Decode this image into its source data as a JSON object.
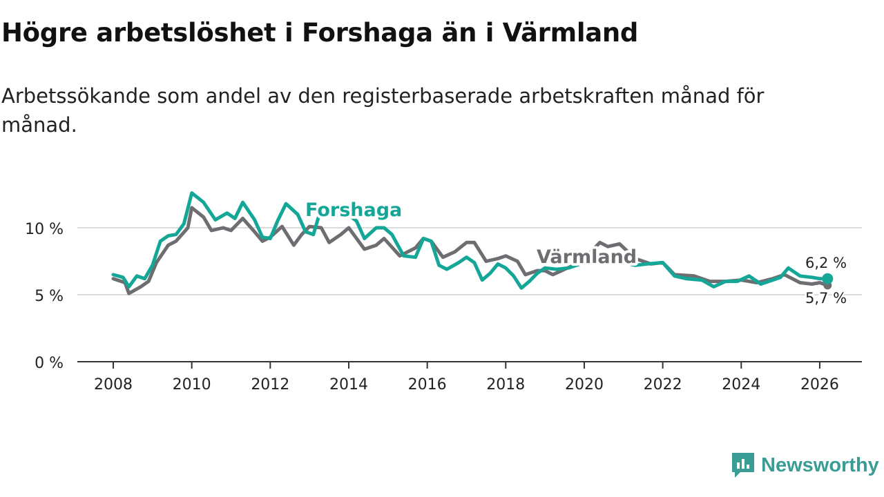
{
  "chart_data": {
    "type": "line",
    "title": "Högre arbetslöshet i Forshaga än i Värmland",
    "subtitle": "Arbetssökande som andel av den registerbaserade arbetskraften månad för månad.",
    "xlabel": "",
    "ylabel": "",
    "xlim": [
      2007.9,
      2027.4
    ],
    "ylim": [
      0,
      12.5
    ],
    "x_ticks": [
      2008,
      2010,
      2012,
      2014,
      2016,
      2018,
      2020,
      2022,
      2024,
      2026
    ],
    "x_tick_labels": [
      "2008",
      "2010",
      "2012",
      "2014",
      "2016",
      "2018",
      "2020",
      "2022",
      "2024",
      "2026"
    ],
    "y_ticks": [
      0,
      5,
      10
    ],
    "y_tick_labels": [
      "0 %",
      "5 %",
      "10 %"
    ],
    "grid": true,
    "series": [
      {
        "name": "Värmland",
        "color": "#6e6e72",
        "end_label": "5,7 %",
        "x": [
          2008.0,
          2008.3,
          2008.4,
          2008.7,
          2008.9,
          2009.1,
          2009.4,
          2009.6,
          2009.9,
          2010.0,
          2010.3,
          2010.5,
          2010.8,
          2011.0,
          2011.3,
          2011.6,
          2011.8,
          2012.0,
          2012.3,
          2012.6,
          2012.8,
          2013.0,
          2013.3,
          2013.5,
          2013.8,
          2014.0,
          2014.4,
          2014.7,
          2014.9,
          2015.3,
          2015.7,
          2015.9,
          2016.1,
          2016.4,
          2016.7,
          2017.0,
          2017.2,
          2017.5,
          2017.8,
          2018.0,
          2018.3,
          2018.5,
          2018.8,
          2019.0,
          2019.2,
          2019.5,
          2019.8,
          2020.1,
          2020.4,
          2020.6,
          2020.9,
          2021.3,
          2021.7,
          2022.0,
          2022.3,
          2022.8,
          2023.2,
          2023.6,
          2024.0,
          2024.4,
          2024.8,
          2025.1,
          2025.5,
          2025.8,
          2026.0,
          2026.2
        ],
        "values": [
          6.2,
          5.9,
          5.1,
          5.6,
          6.0,
          7.4,
          8.7,
          9.0,
          10.0,
          11.5,
          10.8,
          9.8,
          10.0,
          9.8,
          10.7,
          9.7,
          9.0,
          9.3,
          10.1,
          8.7,
          9.5,
          10.1,
          10.0,
          8.9,
          9.5,
          10.0,
          8.4,
          8.7,
          9.2,
          7.9,
          8.5,
          9.2,
          9.0,
          7.8,
          8.2,
          8.9,
          8.9,
          7.5,
          7.7,
          7.9,
          7.5,
          6.5,
          6.8,
          6.8,
          6.5,
          6.9,
          7.3,
          8.0,
          8.9,
          8.6,
          8.8,
          7.7,
          7.3,
          7.4,
          6.5,
          6.4,
          6.0,
          6.0,
          6.1,
          5.9,
          6.2,
          6.5,
          5.9,
          5.8,
          5.9,
          5.7
        ]
      },
      {
        "name": "Forshaga",
        "color": "#14a697",
        "end_label": "6,2 %",
        "x": [
          2008.0,
          2008.25,
          2008.4,
          2008.6,
          2008.8,
          2009.0,
          2009.2,
          2009.4,
          2009.6,
          2009.8,
          2010.0,
          2010.3,
          2010.6,
          2010.9,
          2011.1,
          2011.3,
          2011.6,
          2011.8,
          2012.0,
          2012.2,
          2012.4,
          2012.7,
          2012.9,
          2013.1,
          2013.3,
          2013.6,
          2013.9,
          2014.2,
          2014.4,
          2014.7,
          2014.9,
          2015.1,
          2015.4,
          2015.7,
          2015.9,
          2016.1,
          2016.3,
          2016.5,
          2016.8,
          2017.0,
          2017.2,
          2017.4,
          2017.6,
          2017.8,
          2018.0,
          2018.2,
          2018.4,
          2018.6,
          2018.8,
          2019.0,
          2019.3,
          2019.6,
          2020.0,
          2020.5,
          2021.0,
          2021.3,
          2021.6,
          2022.0,
          2022.3,
          2022.6,
          2023.0,
          2023.3,
          2023.6,
          2023.9,
          2024.2,
          2024.5,
          2024.8,
          2025.0,
          2025.2,
          2025.5,
          2025.8,
          2026.0,
          2026.2
        ],
        "values": [
          6.5,
          6.3,
          5.6,
          6.4,
          6.2,
          7.2,
          9.0,
          9.4,
          9.5,
          10.3,
          12.6,
          11.9,
          10.6,
          11.1,
          10.7,
          11.9,
          10.6,
          9.3,
          9.2,
          10.6,
          11.8,
          11.0,
          9.7,
          9.5,
          11.5,
          10.8,
          11.2,
          10.5,
          9.2,
          10.0,
          10.0,
          9.5,
          7.9,
          7.8,
          9.2,
          9.0,
          7.2,
          6.9,
          7.4,
          7.8,
          7.4,
          6.1,
          6.6,
          7.3,
          7.0,
          6.4,
          5.5,
          6.0,
          6.6,
          7.0,
          6.9,
          7.0,
          7.4,
          7.6,
          7.4,
          7.2,
          7.3,
          7.4,
          6.4,
          6.2,
          6.1,
          5.6,
          6.0,
          6.0,
          6.4,
          5.8,
          6.1,
          6.3,
          7.0,
          6.4,
          6.3,
          6.2,
          6.2
        ]
      }
    ]
  },
  "logo": {
    "text": "Newsworthy"
  }
}
